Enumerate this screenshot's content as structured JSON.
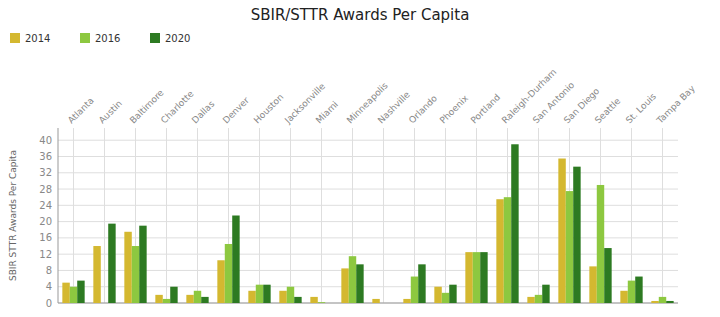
{
  "chart_data": {
    "type": "bar",
    "title": "SBIR/STTR Awards Per Capita",
    "ylabel": "SBIR STTR Awards Per Capita",
    "categories": [
      "Atlanta",
      "Austin",
      "Baltimore",
      "Charlotte",
      "Dallas",
      "Denver",
      "Houston",
      "Jacksonville",
      "Miami",
      "Minneapolis",
      "Nashville",
      "Orlando",
      "Phoenix",
      "Portland",
      "Raleigh-Durham",
      "San Antonio",
      "San Diego",
      "Seattle",
      "St. Louis",
      "Tampa Bay"
    ],
    "series": [
      {
        "name": "2014",
        "color": "#D4B830",
        "values": [
          5.0,
          14.0,
          17.5,
          2.0,
          2.0,
          10.5,
          3.0,
          3.0,
          1.5,
          8.5,
          1.0,
          1.0,
          4.0,
          12.5,
          25.5,
          1.5,
          35.5,
          9.0,
          3.0,
          0.5
        ]
      },
      {
        "name": "2016",
        "color": "#8DC840",
        "values": [
          4.0,
          0.0,
          14.0,
          1.0,
          3.0,
          14.5,
          4.5,
          4.0,
          0.2,
          11.5,
          0.0,
          6.5,
          2.5,
          12.5,
          26.0,
          2.0,
          27.5,
          29.0,
          5.5,
          1.5
        ]
      },
      {
        "name": "2020",
        "color": "#2D7A22",
        "values": [
          5.5,
          19.5,
          19.0,
          4.0,
          1.5,
          21.5,
          4.5,
          1.5,
          0.0,
          9.5,
          0.0,
          9.5,
          4.5,
          12.5,
          39.0,
          4.5,
          33.5,
          13.5,
          6.5,
          0.5
        ]
      }
    ],
    "ylim": [
      0,
      43
    ],
    "yticks": [
      0,
      4,
      8,
      12,
      16,
      20,
      24,
      28,
      32,
      36,
      40
    ],
    "grid": true,
    "legend": "top-left"
  }
}
